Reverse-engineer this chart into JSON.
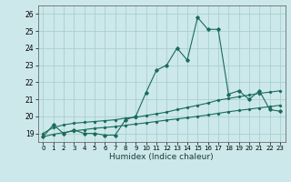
{
  "xlabel": "Humidex (Indice chaleur)",
  "background_color": "#cce8ea",
  "grid_color": "#aacfd2",
  "line_color": "#1a6b5a",
  "xlim": [
    -0.5,
    23.5
  ],
  "ylim": [
    18.5,
    26.5
  ],
  "xticks": [
    0,
    1,
    2,
    3,
    4,
    5,
    6,
    7,
    8,
    9,
    10,
    11,
    12,
    13,
    14,
    15,
    16,
    17,
    18,
    19,
    20,
    21,
    22,
    23
  ],
  "yticks": [
    19,
    20,
    21,
    22,
    23,
    24,
    25,
    26
  ],
  "x": [
    0,
    1,
    2,
    3,
    4,
    5,
    6,
    7,
    8,
    9,
    10,
    11,
    12,
    13,
    14,
    15,
    16,
    17,
    18,
    19,
    20,
    21,
    22,
    23
  ],
  "y_main": [
    18.8,
    19.5,
    19.0,
    19.2,
    19.0,
    19.0,
    18.9,
    18.9,
    19.8,
    20.0,
    21.4,
    22.7,
    23.0,
    24.0,
    23.3,
    25.8,
    25.1,
    25.1,
    21.3,
    21.5,
    21.0,
    21.5,
    20.4,
    20.3
  ],
  "y_line1": [
    19.0,
    19.35,
    19.5,
    19.6,
    19.65,
    19.7,
    19.75,
    19.8,
    19.9,
    19.95,
    20.05,
    20.15,
    20.25,
    20.4,
    20.52,
    20.65,
    20.78,
    20.95,
    21.05,
    21.15,
    21.25,
    21.35,
    21.42,
    21.5
  ],
  "y_line2": [
    18.8,
    18.95,
    19.05,
    19.15,
    19.22,
    19.3,
    19.35,
    19.4,
    19.48,
    19.55,
    19.62,
    19.7,
    19.78,
    19.85,
    19.92,
    20.0,
    20.08,
    20.18,
    20.27,
    20.35,
    20.42,
    20.5,
    20.57,
    20.65
  ]
}
